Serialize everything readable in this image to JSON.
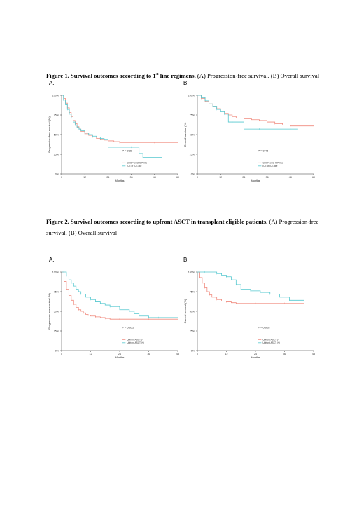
{
  "fig1": {
    "caption_bold_pre": "Figure 1. Survival outcomes according to 1",
    "caption_sup": "st",
    "caption_bold_post": " line regimens.",
    "caption_rest": " (A) Progression-free survival. (B) Overall survival"
  },
  "fig2": {
    "caption_bold": "Figure 2. Survival outcomes according to upfront ASCT in transplant eligible patients.",
    "caption_rest": " (A) Progression-free survival. (B) Overall survival"
  },
  "colors": {
    "series1": "#f08a7e",
    "series2": "#55c8cf",
    "axis": "#333333"
  },
  "chart_data": [
    {
      "type": "line",
      "panel_label": "A.",
      "title": "",
      "xlabel": "Months",
      "ylabel": "Progression-free survival (%)",
      "xlim": [
        0,
        60
      ],
      "ylim": [
        0,
        100
      ],
      "x_ticks": [
        "0",
        "12",
        "24",
        "36",
        "48",
        "60"
      ],
      "y_ticks": [
        "0%",
        "25%",
        "50%",
        "75%",
        "100%"
      ],
      "p_value": "P = 0.38",
      "legend": "bottom-right",
      "series": [
        {
          "name": "CHOP or CHOP-like",
          "color": "#f08a7e",
          "x": [
            0,
            1,
            2,
            3,
            4,
            5,
            6,
            7,
            8,
            9,
            10,
            12,
            14,
            16,
            18,
            20,
            22,
            24,
            27,
            30,
            36,
            48,
            60
          ],
          "y": [
            100,
            96,
            90,
            84,
            78,
            73,
            68,
            64,
            60,
            57,
            54,
            51,
            49,
            47,
            45,
            44,
            43,
            42,
            41,
            40,
            40,
            40,
            40
          ]
        },
        {
          "name": "ICE or ICE-like",
          "color": "#55c8cf",
          "x": [
            0,
            1,
            2,
            3,
            4,
            5,
            6,
            7,
            8,
            9,
            10,
            12,
            14,
            16,
            18,
            20,
            22,
            24,
            30,
            36,
            40,
            42,
            52
          ],
          "y": [
            100,
            94,
            88,
            82,
            76,
            71,
            66,
            62,
            59,
            57,
            55,
            52,
            50,
            48,
            47,
            45,
            44,
            34,
            34,
            34,
            26,
            21,
            21
          ]
        }
      ]
    },
    {
      "type": "line",
      "panel_label": "B.",
      "title": "",
      "xlabel": "Months",
      "ylabel": "Overall survival (%)",
      "xlim": [
        0,
        60
      ],
      "ylim": [
        0,
        100
      ],
      "x_ticks": [
        "0",
        "12",
        "24",
        "36",
        "48",
        "60"
      ],
      "y_ticks": [
        "0%",
        "25%",
        "50%",
        "75%",
        "100%"
      ],
      "p_value": "P = 0.43",
      "legend": "bottom-right",
      "series": [
        {
          "name": "CHOP or CHOP-like",
          "color": "#f08a7e",
          "x": [
            0,
            2,
            4,
            6,
            8,
            10,
            12,
            14,
            16,
            18,
            20,
            24,
            28,
            32,
            36,
            40,
            44,
            48,
            60
          ],
          "y": [
            100,
            96,
            92,
            89,
            86,
            83,
            80,
            77,
            75,
            73,
            71,
            70,
            69,
            68,
            66,
            64,
            62,
            61,
            61
          ]
        },
        {
          "name": "ICE or ICE-like",
          "color": "#55c8cf",
          "x": [
            0,
            2,
            4,
            6,
            8,
            10,
            12,
            14,
            16,
            18,
            20,
            24,
            28,
            32,
            36,
            48,
            52
          ],
          "y": [
            100,
            97,
            93,
            89,
            86,
            82,
            79,
            76,
            66,
            66,
            66,
            57,
            57,
            57,
            57,
            57,
            57
          ]
        }
      ]
    },
    {
      "type": "line",
      "panel_label": "A.",
      "title": "",
      "xlabel": "Months",
      "ylabel": "Progression-free survival (%)",
      "xlim": [
        0,
        48
      ],
      "ylim": [
        0,
        100
      ],
      "x_ticks": [
        "0",
        "12",
        "24",
        "36",
        "48"
      ],
      "y_ticks": [
        "0%",
        "25%",
        "50%",
        "75%",
        "100%"
      ],
      "p_value": "P = 0.032",
      "legend": "bottom-right",
      "series": [
        {
          "name": "Upfront ASCT (-)",
          "color": "#f08a7e",
          "x": [
            0,
            1,
            2,
            3,
            4,
            5,
            6,
            7,
            8,
            9,
            10,
            11,
            12,
            14,
            16,
            18,
            20,
            24,
            30,
            36,
            48
          ],
          "y": [
            100,
            88,
            78,
            70,
            64,
            59,
            55,
            52,
            50,
            48,
            46,
            45,
            44,
            43,
            42,
            41,
            40,
            40,
            40,
            40,
            40
          ]
        },
        {
          "name": "Upfront ASCT (+)",
          "color": "#55c8cf",
          "x": [
            0,
            2,
            3,
            4,
            5,
            6,
            7,
            8,
            10,
            12,
            14,
            16,
            18,
            20,
            24,
            28,
            30,
            32,
            36,
            40,
            48
          ],
          "y": [
            100,
            95,
            90,
            86,
            82,
            78,
            75,
            72,
            68,
            65,
            62,
            60,
            58,
            56,
            52,
            50,
            47,
            44,
            42,
            42,
            42
          ]
        }
      ]
    },
    {
      "type": "line",
      "panel_label": "B.",
      "title": "",
      "xlabel": "Months",
      "ylabel": "Overall survival (%)",
      "xlim": [
        0,
        48
      ],
      "ylim": [
        0,
        100
      ],
      "x_ticks": [
        "0",
        "12",
        "24",
        "36",
        "48"
      ],
      "y_ticks": [
        "0%",
        "25%",
        "50%",
        "75%",
        "100%"
      ],
      "p_value": "P = 0.028",
      "legend": "bottom-right",
      "series": [
        {
          "name": "Upfront ASCT (-)",
          "color": "#f08a7e",
          "x": [
            0,
            1,
            2,
            3,
            4,
            5,
            6,
            8,
            10,
            12,
            14,
            16,
            20,
            24,
            30,
            36,
            44
          ],
          "y": [
            100,
            93,
            86,
            80,
            75,
            71,
            68,
            65,
            63,
            62,
            61,
            60,
            60,
            60,
            60,
            60,
            60
          ]
        },
        {
          "name": "Upfront ASCT (+)",
          "color": "#55c8cf",
          "x": [
            0,
            3,
            6,
            8,
            10,
            12,
            14,
            16,
            18,
            22,
            26,
            30,
            34,
            38,
            44
          ],
          "y": [
            100,
            100,
            100,
            98,
            96,
            94,
            90,
            84,
            78,
            76,
            74,
            72,
            68,
            64,
            64
          ]
        }
      ]
    }
  ]
}
